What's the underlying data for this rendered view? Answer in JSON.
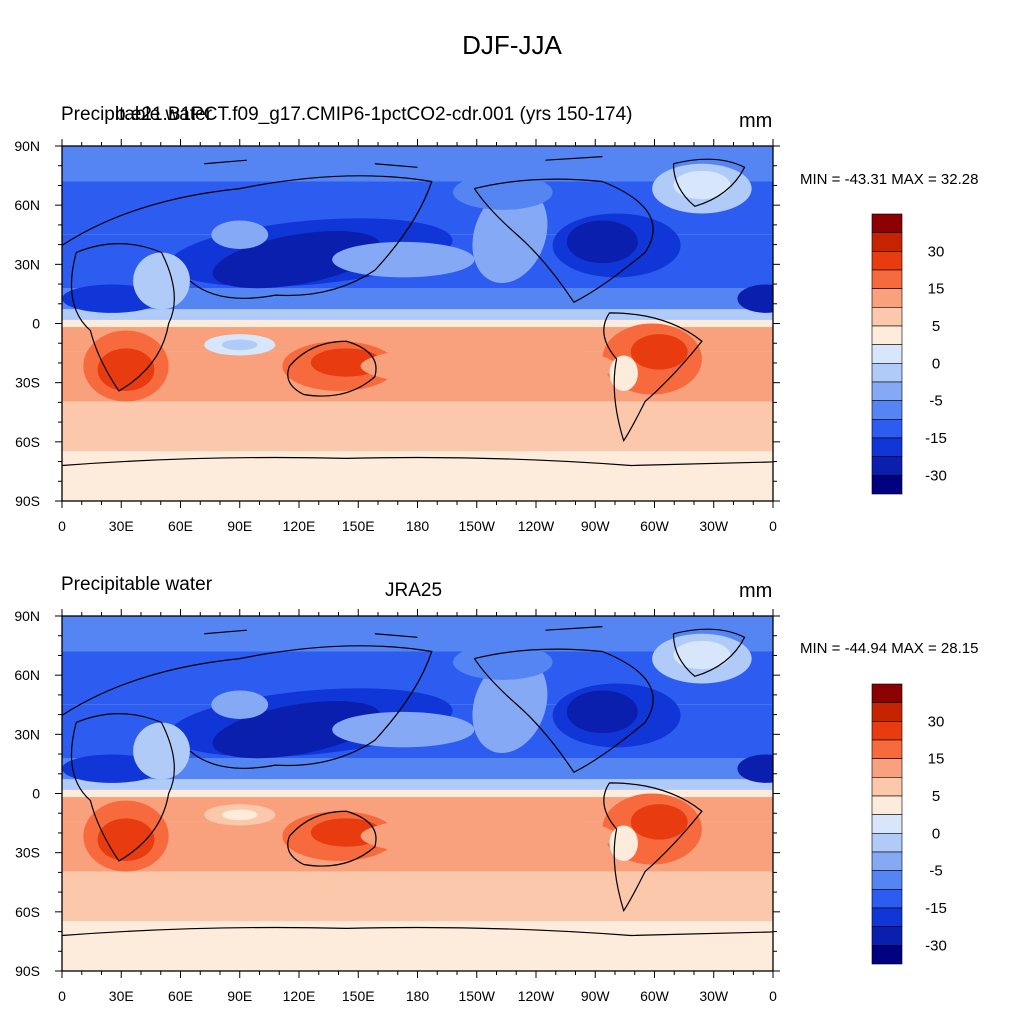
{
  "main_title": "DJF-JJA",
  "colormap": {
    "levels": [
      30,
      15,
      5,
      0,
      -5,
      -15,
      -30
    ],
    "colors": [
      "#8b0000",
      "#c62400",
      "#e83b0f",
      "#f66a3d",
      "#f9a07c",
      "#fcc8ab",
      "#fdebdc",
      "#d7e6fb",
      "#b0cbf8",
      "#85a9f5",
      "#5585f2",
      "#2c5cf0",
      "#1036d8",
      "#0a1fae",
      "#000080"
    ]
  },
  "panels": [
    {
      "left_title": "Precipitable water",
      "center_title": "b.e21.B1PCT.f09_g17.CMIP6-1pctCO2-cdr.001 (yrs 150-174)",
      "units": "mm",
      "min_max": "MIN = -43.31 MAX =  32.28"
    },
    {
      "left_title": "Precipitable water",
      "center_title": "JRA25",
      "units": "mm",
      "min_max": "MIN = -44.94 MAX =  28.15"
    }
  ],
  "axes": {
    "x_ticks": [
      "0",
      "30E",
      "60E",
      "90E",
      "120E",
      "150E",
      "180",
      "150W",
      "120W",
      "90W",
      "60W",
      "30W",
      "0"
    ],
    "y_ticks": [
      "90N",
      "60N",
      "30N",
      "0",
      "30S",
      "60S",
      "90S"
    ]
  }
}
